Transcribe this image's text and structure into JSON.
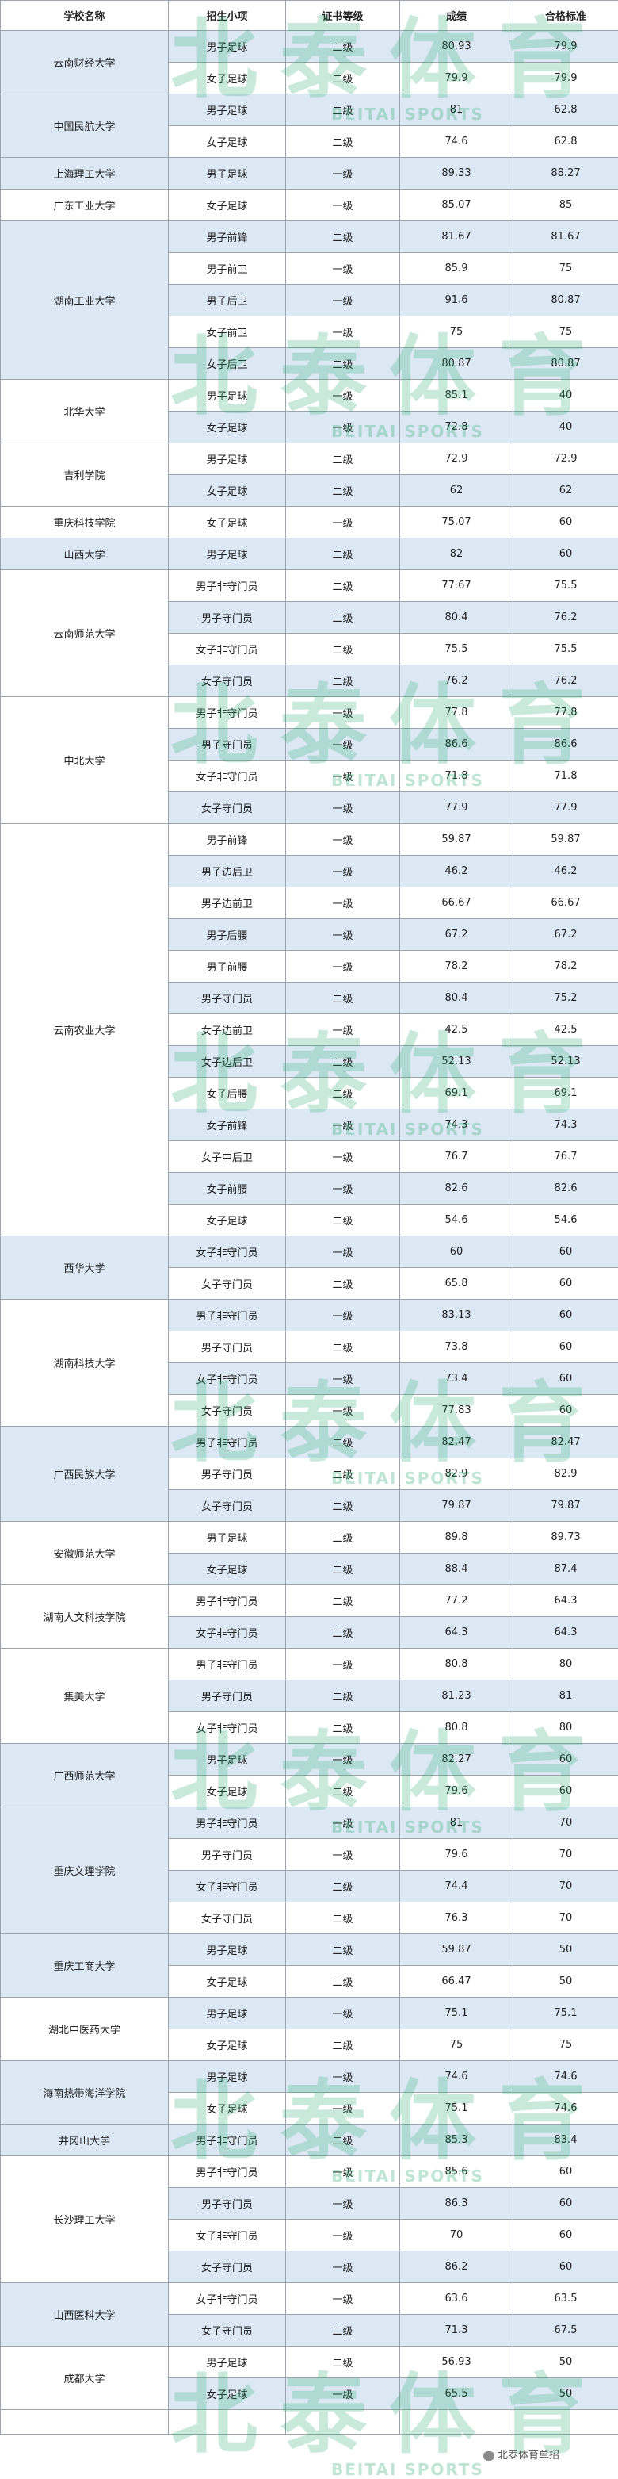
{
  "headers": [
    "学校名称",
    "招生小项",
    "证书等级",
    "成绩",
    "合格标准"
  ],
  "watermark": {
    "zh": "北泰体育",
    "en": "BEITAI SPORTS"
  },
  "footer": {
    "wechat_label": "北泰体育单招"
  },
  "schools": [
    {
      "name": "云南财经大学",
      "shaded": true,
      "rows": [
        {
          "item": "男子足球",
          "level": "二级",
          "score": "80.93",
          "standard": "79.9"
        },
        {
          "item": "女子足球",
          "level": "二级",
          "score": "79.9",
          "standard": "79.9"
        }
      ]
    },
    {
      "name": "中国民航大学",
      "shaded": true,
      "rows": [
        {
          "item": "男子足球",
          "level": "二级",
          "score": "81",
          "standard": "62.8"
        },
        {
          "item": "女子足球",
          "level": "二级",
          "score": "74.6",
          "standard": "62.8"
        }
      ]
    },
    {
      "name": "上海理工大学",
      "shaded": true,
      "rows": [
        {
          "item": "男子足球",
          "level": "一级",
          "score": "89.33",
          "standard": "88.27"
        }
      ]
    },
    {
      "name": "广东工业大学",
      "shaded": false,
      "rows": [
        {
          "item": "女子足球",
          "level": "一级",
          "score": "85.07",
          "standard": "85"
        }
      ]
    },
    {
      "name": "湖南工业大学",
      "shaded": true,
      "rows": [
        {
          "item": "男子前锋",
          "level": "二级",
          "score": "81.67",
          "standard": "81.67"
        },
        {
          "item": "男子前卫",
          "level": "一级",
          "score": "85.9",
          "standard": "75"
        },
        {
          "item": "男子后卫",
          "level": "一级",
          "score": "91.6",
          "standard": "80.87"
        },
        {
          "item": "女子前卫",
          "level": "一级",
          "score": "75",
          "standard": "75"
        },
        {
          "item": "女子后卫",
          "level": "二级",
          "score": "80.87",
          "standard": "80.87"
        }
      ]
    },
    {
      "name": "北华大学",
      "shaded": false,
      "rows": [
        {
          "item": "男子足球",
          "level": "一级",
          "score": "85.1",
          "standard": "40"
        },
        {
          "item": "女子足球",
          "level": "一级",
          "score": "72.8",
          "standard": "40"
        }
      ]
    },
    {
      "name": "吉利学院",
      "shaded": false,
      "rows": [
        {
          "item": "男子足球",
          "level": "二级",
          "score": "72.9",
          "standard": "72.9"
        },
        {
          "item": "女子足球",
          "level": "二级",
          "score": "62",
          "standard": "62"
        }
      ]
    },
    {
      "name": "重庆科技学院",
      "shaded": false,
      "rows": [
        {
          "item": "女子足球",
          "level": "一级",
          "score": "75.07",
          "standard": "60"
        }
      ]
    },
    {
      "name": "山西大学",
      "shaded": true,
      "rows": [
        {
          "item": "男子足球",
          "level": "二级",
          "score": "82",
          "standard": "60"
        }
      ]
    },
    {
      "name": "云南师范大学",
      "shaded": false,
      "rows": [
        {
          "item": "男子非守门员",
          "level": "二级",
          "score": "77.67",
          "standard": "75.5"
        },
        {
          "item": "男子守门员",
          "level": "二级",
          "score": "80.4",
          "standard": "76.2"
        },
        {
          "item": "女子非守门员",
          "level": "二级",
          "score": "75.5",
          "standard": "75.5"
        },
        {
          "item": "女子守门员",
          "level": "二级",
          "score": "76.2",
          "standard": "76.2"
        }
      ]
    },
    {
      "name": "中北大学",
      "shaded": false,
      "rows": [
        {
          "item": "男子非守门员",
          "level": "一级",
          "score": "77.8",
          "standard": "77.8"
        },
        {
          "item": "男子守门员",
          "level": "一级",
          "score": "86.6",
          "standard": "86.6"
        },
        {
          "item": "女子非守门员",
          "level": "一级",
          "score": "71.8",
          "standard": "71.8"
        },
        {
          "item": "女子守门员",
          "level": "一级",
          "score": "77.9",
          "standard": "77.9"
        }
      ]
    },
    {
      "name": "云南农业大学",
      "shaded": false,
      "rows": [
        {
          "item": "男子前锋",
          "level": "一级",
          "score": "59.87",
          "standard": "59.87"
        },
        {
          "item": "男子边后卫",
          "level": "一级",
          "score": "46.2",
          "standard": "46.2"
        },
        {
          "item": "男子边前卫",
          "level": "一级",
          "score": "66.67",
          "standard": "66.67"
        },
        {
          "item": "男子后腰",
          "level": "一级",
          "score": "67.2",
          "standard": "67.2"
        },
        {
          "item": "男子前腰",
          "level": "一级",
          "score": "78.2",
          "standard": "78.2"
        },
        {
          "item": "男子守门员",
          "level": "二级",
          "score": "80.4",
          "standard": "75.2"
        },
        {
          "item": "女子边前卫",
          "level": "一级",
          "score": "42.5",
          "standard": "42.5"
        },
        {
          "item": "女子边后卫",
          "level": "二级",
          "score": "52.13",
          "standard": "52.13"
        },
        {
          "item": "女子后腰",
          "level": "二级",
          "score": "69.1",
          "standard": "69.1"
        },
        {
          "item": "女子前锋",
          "level": "一级",
          "score": "74.3",
          "standard": "74.3"
        },
        {
          "item": "女子中后卫",
          "level": "一级",
          "score": "76.7",
          "standard": "76.7"
        },
        {
          "item": "女子前腰",
          "level": "一级",
          "score": "82.6",
          "standard": "82.6"
        },
        {
          "item": "女子足球",
          "level": "二级",
          "score": "54.6",
          "standard": "54.6"
        }
      ]
    },
    {
      "name": "西华大学",
      "shaded": true,
      "rows": [
        {
          "item": "女子非守门员",
          "level": "一级",
          "score": "60",
          "standard": "60"
        },
        {
          "item": "女子守门员",
          "level": "二级",
          "score": "65.8",
          "standard": "60"
        }
      ]
    },
    {
      "name": "湖南科技大学",
      "shaded": false,
      "rows": [
        {
          "item": "男子非守门员",
          "level": "一级",
          "score": "83.13",
          "standard": "60"
        },
        {
          "item": "男子守门员",
          "level": "二级",
          "score": "73.8",
          "standard": "60"
        },
        {
          "item": "女子非守门员",
          "level": "一级",
          "score": "73.4",
          "standard": "60"
        },
        {
          "item": "女子守门员",
          "level": "一级",
          "score": "77.83",
          "standard": "60"
        }
      ]
    },
    {
      "name": "广西民族大学",
      "shaded": true,
      "rows": [
        {
          "item": "男子非守门员",
          "level": "二级",
          "score": "82.47",
          "standard": "82.47"
        },
        {
          "item": "男子守门员",
          "level": "二级",
          "score": "82.9",
          "standard": "82.9"
        },
        {
          "item": "女子守门员",
          "level": "二级",
          "score": "79.87",
          "standard": "79.87"
        }
      ]
    },
    {
      "name": "安徽师范大学",
      "shaded": false,
      "rows": [
        {
          "item": "男子足球",
          "level": "二级",
          "score": "89.8",
          "standard": "89.73"
        },
        {
          "item": "女子足球",
          "level": "二级",
          "score": "88.4",
          "standard": "87.4"
        }
      ]
    },
    {
      "name": "湖南人文科技学院",
      "shaded": false,
      "rows": [
        {
          "item": "男子非守门员",
          "level": "二级",
          "score": "77.2",
          "standard": "64.3"
        },
        {
          "item": "女子非守门员",
          "level": "二级",
          "score": "64.3",
          "standard": "64.3"
        }
      ]
    },
    {
      "name": "集美大学",
      "shaded": false,
      "rows": [
        {
          "item": "男子非守门员",
          "level": "一级",
          "score": "80.8",
          "standard": "80"
        },
        {
          "item": "男子守门员",
          "level": "二级",
          "score": "81.23",
          "standard": "81"
        },
        {
          "item": "女子非守门员",
          "level": "二级",
          "score": "80.8",
          "standard": "80"
        }
      ]
    },
    {
      "name": "广西师范大学",
      "shaded": true,
      "rows": [
        {
          "item": "男子足球",
          "level": "一级",
          "score": "82.27",
          "standard": "60"
        },
        {
          "item": "女子足球",
          "level": "二级",
          "score": "79.6",
          "standard": "60"
        }
      ]
    },
    {
      "name": "重庆文理学院",
      "shaded": true,
      "rows": [
        {
          "item": "男子非守门员",
          "level": "一级",
          "score": "81",
          "standard": "70"
        },
        {
          "item": "男子守门员",
          "level": "一级",
          "score": "79.6",
          "standard": "70"
        },
        {
          "item": "女子非守门员",
          "level": "二级",
          "score": "74.4",
          "standard": "70"
        },
        {
          "item": "女子守门员",
          "level": "二级",
          "score": "76.3",
          "standard": "70"
        }
      ]
    },
    {
      "name": "重庆工商大学",
      "shaded": true,
      "rows": [
        {
          "item": "男子足球",
          "level": "二级",
          "score": "59.87",
          "standard": "50"
        },
        {
          "item": "女子足球",
          "level": "二级",
          "score": "66.47",
          "standard": "50"
        }
      ]
    },
    {
      "name": "湖北中医药大学",
      "shaded": false,
      "rows": [
        {
          "item": "男子足球",
          "level": "一级",
          "score": "75.1",
          "standard": "75.1"
        },
        {
          "item": "女子足球",
          "level": "二级",
          "score": "75",
          "standard": "75"
        }
      ]
    },
    {
      "name": "海南热带海洋学院",
      "shaded": true,
      "rows": [
        {
          "item": "男子足球",
          "level": "一级",
          "score": "74.6",
          "standard": "74.6"
        },
        {
          "item": "女子足球",
          "level": "一级",
          "score": "75.1",
          "standard": "74.6"
        }
      ]
    },
    {
      "name": "井冈山大学",
      "shaded": true,
      "rows": [
        {
          "item": "男子非守门员",
          "level": "二级",
          "score": "85.3",
          "standard": "83.4"
        }
      ]
    },
    {
      "name": "长沙理工大学",
      "shaded": false,
      "rows": [
        {
          "item": "男子非守门员",
          "level": "一级",
          "score": "85.6",
          "standard": "60"
        },
        {
          "item": "男子守门员",
          "level": "一级",
          "score": "86.3",
          "standard": "60"
        },
        {
          "item": "女子非守门员",
          "level": "一级",
          "score": "70",
          "standard": "60"
        },
        {
          "item": "女子守门员",
          "level": "一级",
          "score": "86.2",
          "standard": "60"
        }
      ]
    },
    {
      "name": "山西医科大学",
      "shaded": true,
      "rows": [
        {
          "item": "女子非守门员",
          "level": "一级",
          "score": "63.6",
          "standard": "63.5"
        },
        {
          "item": "女子守门员",
          "level": "二级",
          "score": "71.3",
          "standard": "67.5"
        }
      ]
    },
    {
      "name": "成都大学",
      "shaded": false,
      "rows": [
        {
          "item": "男子足球",
          "level": "二级",
          "score": "56.93",
          "standard": "50"
        },
        {
          "item": "女子足球",
          "level": "一级",
          "score": "65.5",
          "standard": "50"
        }
      ]
    }
  ]
}
